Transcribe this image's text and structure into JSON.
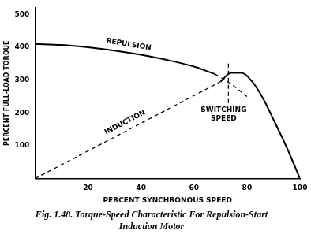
{
  "chart_data": {
    "type": "line",
    "title": [
      "Fig. 1.48. Torque-Speed Characteristic For Repulsion-Start",
      "Induction Motor"
    ],
    "x_label": "PERCENT SYNCHRONOUS SPEED",
    "y_label": "PERCENT FULL-LOAD TORQUE",
    "xlim": [
      0,
      100
    ],
    "xticks": [
      20,
      40,
      60,
      80,
      100
    ],
    "ylim": [
      0,
      520
    ],
    "yticks": [
      100,
      200,
      300,
      400,
      500
    ],
    "grid": false,
    "series": [
      {
        "name": "REPULSION",
        "color": "#000000",
        "line_style": "solid",
        "x": [
          0,
          10,
          20,
          30,
          40,
          50,
          60,
          68
        ],
        "values": [
          410,
          407,
          400,
          390,
          377,
          361,
          341,
          318
        ]
      },
      {
        "name": "REPULSION",
        "color": "#000000",
        "line_style": "dashed",
        "x": [
          68,
          74,
          80
        ],
        "values": [
          318,
          288,
          250
        ]
      },
      {
        "name": "INDUCTION",
        "color": "#000000",
        "line_style": "dashed",
        "x": [
          0,
          70
        ],
        "values": [
          0,
          295
        ]
      },
      {
        "name": "INDUCTION",
        "color": "#000000",
        "line_style": "solid",
        "x": [
          70,
          74,
          78,
          82,
          86,
          90,
          95,
          100
        ],
        "values": [
          295,
          322,
          322,
          295,
          245,
          180,
          95,
          0
        ]
      }
    ],
    "annotations": [
      {
        "text": "SWITCHING SPEED",
        "x": 73,
        "y": [
          230,
          360
        ]
      }
    ]
  }
}
